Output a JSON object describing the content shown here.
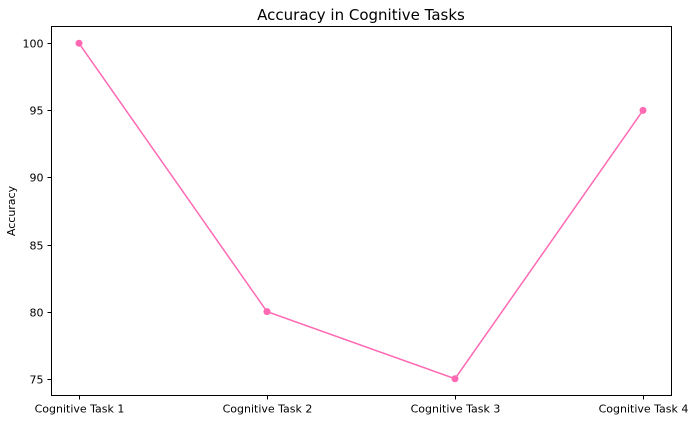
{
  "chart_data": {
    "type": "line",
    "title": "Accuracy in Cognitive Tasks",
    "xlabel": "",
    "ylabel": "Accuracy",
    "categories": [
      "Cognitive Task 1",
      "Cognitive Task 2",
      "Cognitive Task 3",
      "Cognitive Task 4"
    ],
    "series": [
      {
        "values": [
          100,
          80,
          75,
          95
        ],
        "color": "#ff69b4",
        "marker": "circle"
      }
    ],
    "ylim": [
      73.75,
      101.25
    ],
    "yticks": [
      "75",
      "80",
      "85",
      "90",
      "95",
      "100"
    ],
    "grid": false,
    "legend": "none"
  }
}
